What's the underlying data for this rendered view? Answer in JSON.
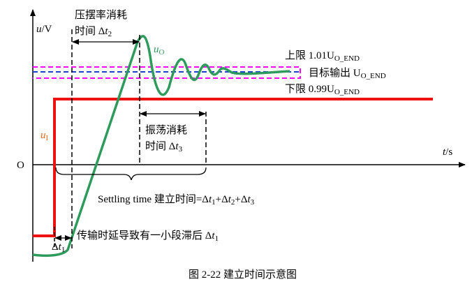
{
  "axes": {
    "y_var": "u",
    "y_unit": "/V",
    "x_var": "t",
    "x_unit": "/s",
    "origin": "O"
  },
  "signals": {
    "output": {
      "var": "u",
      "sub": "O"
    },
    "input": {
      "var": "u",
      "sub": "I"
    }
  },
  "levels": {
    "upper": {
      "prefix": "上限 1.01U",
      "sub": "O_END"
    },
    "target": {
      "prefix": "目标输出 U",
      "sub": "O_END"
    },
    "lower": {
      "prefix": "下限 0.99U",
      "sub": "O_END"
    }
  },
  "slew": {
    "line1": "压摆率消耗",
    "line2": "时间 Δ",
    "var": "t",
    "sub": "2"
  },
  "ringing": {
    "line1": "振荡消耗",
    "line2": "时间 Δ",
    "var": "t",
    "sub": "3"
  },
  "delay": {
    "text": "传输时延导致有一小段滞后 Δ",
    "var": "t",
    "sub": "1",
    "short": "Δ"
  },
  "settling": {
    "lead": "Settling time  建立时间=Δ",
    "v1": "t",
    "s1": "1",
    "plus1": "+Δ",
    "v2": "t",
    "s2": "2",
    "plus2": "+Δ",
    "v3": "t",
    "s3": "3"
  },
  "caption": "图 2-22  建立时间示意图"
}
